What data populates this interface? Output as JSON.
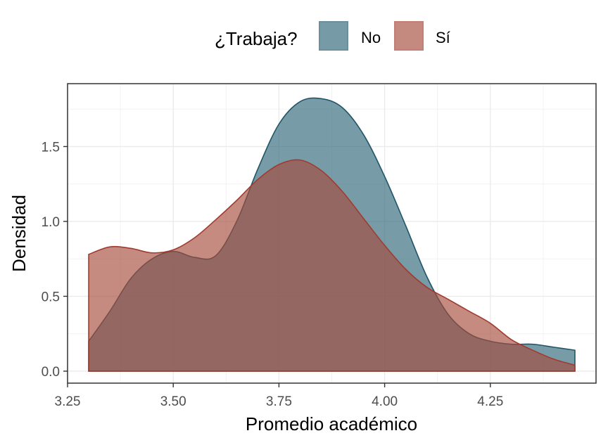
{
  "chart_data": {
    "type": "area",
    "legend": {
      "title": "¿Trabaja?",
      "position": "top"
    },
    "xlabel": "Promedio académico",
    "ylabel": "Densidad",
    "xlim": [
      3.25,
      4.5
    ],
    "ylim": [
      -0.08,
      1.92
    ],
    "xticks": [
      3.25,
      3.5,
      3.75,
      4.0,
      4.25
    ],
    "xtick_labels": [
      "3.25",
      "3.50",
      "3.75",
      "4.00",
      "4.25"
    ],
    "yticks": [
      0.0,
      0.5,
      1.0,
      1.5
    ],
    "ytick_labels": [
      "0.0",
      "0.5",
      "1.0",
      "1.5"
    ],
    "grid": true,
    "series": [
      {
        "name": "No",
        "fill": "#2E6779",
        "stroke": "#1F5566",
        "x": [
          3.3,
          3.35,
          3.4,
          3.45,
          3.5,
          3.55,
          3.6,
          3.65,
          3.7,
          3.75,
          3.8,
          3.85,
          3.9,
          3.95,
          4.0,
          4.05,
          4.1,
          4.15,
          4.2,
          4.25,
          4.3,
          4.35,
          4.4,
          4.45
        ],
        "values": [
          0.2,
          0.4,
          0.62,
          0.75,
          0.8,
          0.76,
          0.77,
          1.0,
          1.35,
          1.65,
          1.8,
          1.82,
          1.76,
          1.58,
          1.3,
          0.97,
          0.63,
          0.38,
          0.25,
          0.2,
          0.18,
          0.18,
          0.16,
          0.14
        ]
      },
      {
        "name": "Sí",
        "fill": "#A64B3C",
        "stroke": "#A03B2E",
        "x": [
          3.3,
          3.35,
          3.4,
          3.45,
          3.5,
          3.55,
          3.6,
          3.65,
          3.7,
          3.75,
          3.8,
          3.85,
          3.9,
          3.95,
          4.0,
          4.05,
          4.1,
          4.15,
          4.2,
          4.25,
          4.3,
          4.35,
          4.4,
          4.45
        ],
        "values": [
          0.78,
          0.83,
          0.82,
          0.79,
          0.81,
          0.89,
          1.01,
          1.14,
          1.28,
          1.38,
          1.41,
          1.34,
          1.2,
          1.02,
          0.84,
          0.68,
          0.56,
          0.48,
          0.4,
          0.32,
          0.21,
          0.14,
          0.08,
          0.04
        ]
      }
    ]
  }
}
